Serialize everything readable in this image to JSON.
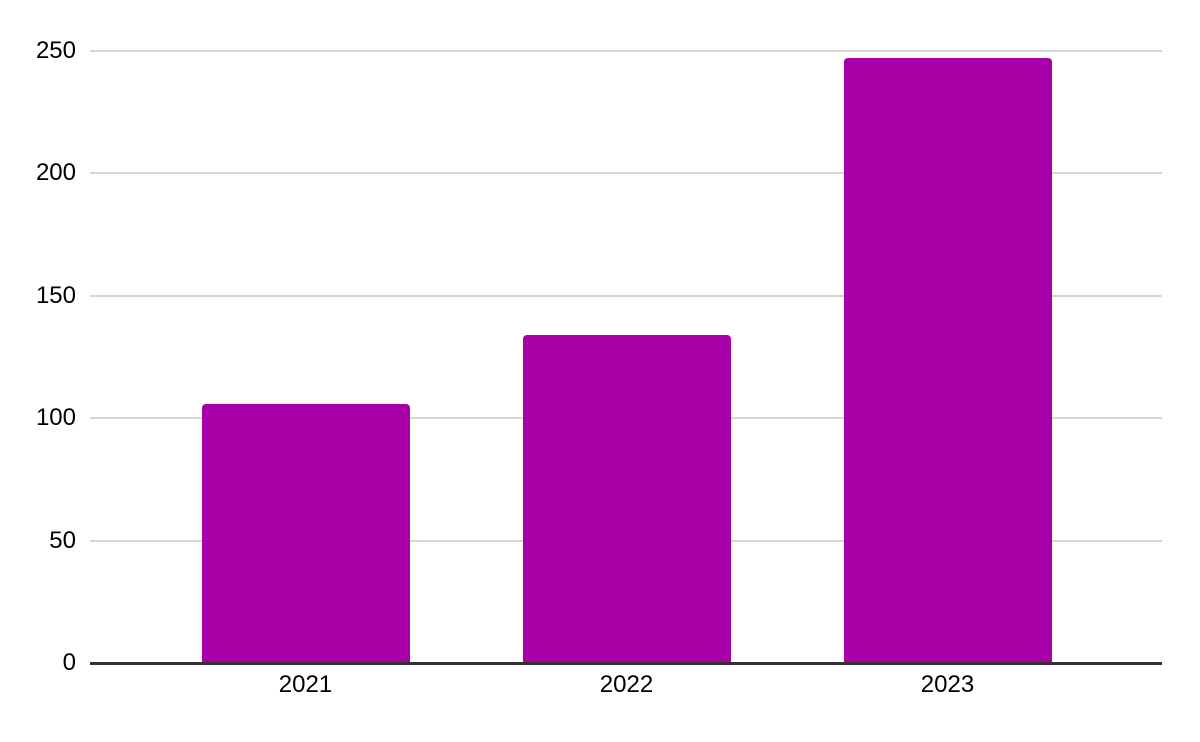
{
  "chart_data": {
    "type": "bar",
    "categories": [
      "2021",
      "2022",
      "2023"
    ],
    "values": [
      106,
      134,
      247
    ],
    "series": [
      {
        "name": "",
        "values": [
          106,
          134,
          247
        ]
      }
    ],
    "title": "",
    "xlabel": "",
    "ylabel": "",
    "ylim": [
      0,
      250
    ],
    "yticks": [
      0,
      50,
      100,
      150,
      200,
      250
    ],
    "ytick_labels": [
      "0",
      "50",
      "100",
      "150",
      "200",
      "250"
    ],
    "grid": true,
    "legend_position": "none",
    "colors": {
      "bar": "#a800a8",
      "gridline": "#d6d6d6",
      "axis": "#333333",
      "text": "#000000",
      "background": "#ffffff"
    }
  }
}
